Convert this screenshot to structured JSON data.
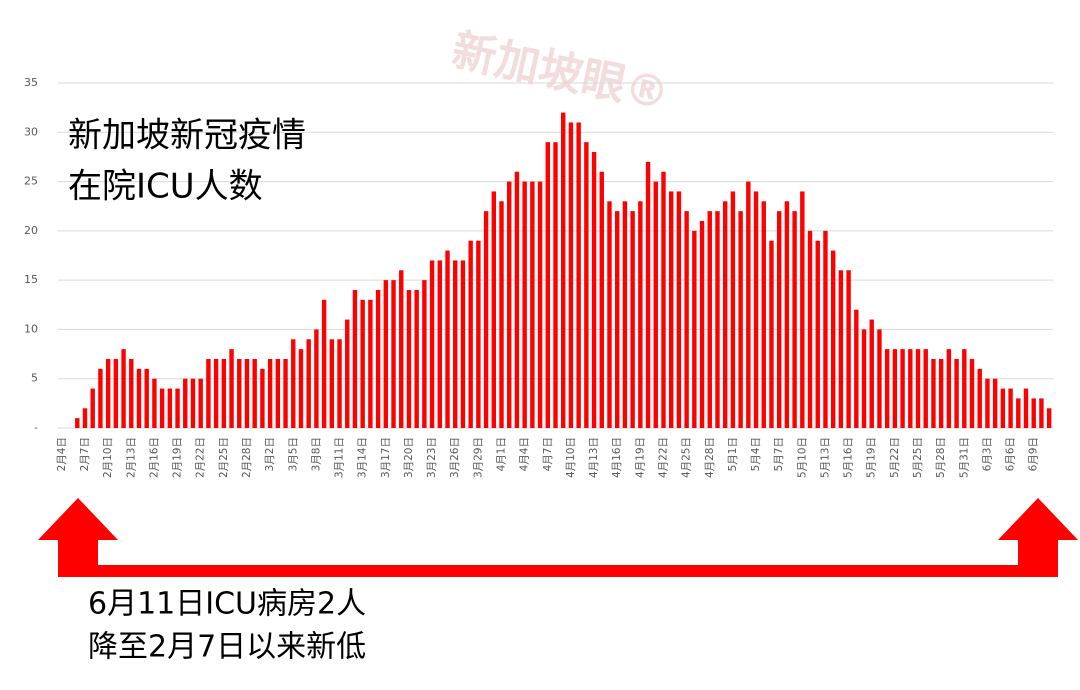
{
  "chart_data": {
    "type": "bar",
    "title_lines": [
      "新加坡新冠疫情",
      "在院ICU人数"
    ],
    "annotation_lines": [
      "6月11日ICU病房2人",
      "降至2月7日以来新低"
    ],
    "watermark": "新加坡眼®",
    "color": "#ff0000",
    "grid": true,
    "ylim": [
      0,
      35
    ],
    "yticks": [
      {
        "value": 0,
        "label": "-"
      },
      5,
      10,
      15,
      20,
      25,
      30,
      35
    ],
    "categories": [
      "2月4日",
      null,
      null,
      "2月7日",
      null,
      null,
      "2月10日",
      null,
      null,
      "2月13日",
      null,
      null,
      "2月16日",
      null,
      null,
      "2月19日",
      null,
      null,
      "2月22日",
      null,
      null,
      "2月25日",
      null,
      null,
      "2月28日",
      null,
      null,
      "3月2日",
      null,
      null,
      "3月5日",
      null,
      null,
      "3月8日",
      null,
      null,
      "3月11日",
      null,
      null,
      "3月14日",
      null,
      null,
      "3月17日",
      null,
      null,
      "3月20日",
      null,
      null,
      "3月23日",
      null,
      null,
      "3月26日",
      null,
      null,
      "3月29日",
      null,
      null,
      "4月1日",
      null,
      null,
      "4月4日",
      null,
      null,
      "4月7日",
      null,
      null,
      "4月10日",
      null,
      null,
      "4月13日",
      null,
      null,
      "4月16日",
      null,
      null,
      "4月19日",
      null,
      null,
      "4月22日",
      null,
      null,
      "4月25日",
      null,
      null,
      "4月28日",
      null,
      null,
      "5月1日",
      null,
      null,
      "5月4日",
      null,
      null,
      "5月7日",
      null,
      null,
      "5月10日",
      null,
      null,
      "5月13日",
      null,
      null,
      "5月16日",
      null,
      null,
      "5月19日",
      null,
      null,
      "5月22日",
      null,
      null,
      "5月25日",
      null,
      null,
      "5月28日",
      null,
      null,
      "5月31日",
      null,
      null,
      "6月3日",
      null,
      null,
      "6月6日",
      null,
      null,
      "6月9日",
      null,
      null
    ],
    "values": [
      0,
      0,
      1,
      2,
      4,
      6,
      7,
      7,
      8,
      7,
      6,
      6,
      5,
      4,
      4,
      4,
      5,
      5,
      5,
      7,
      7,
      7,
      8,
      7,
      7,
      7,
      6,
      7,
      7,
      7,
      9,
      8,
      9,
      10,
      13,
      9,
      9,
      11,
      14,
      13,
      13,
      14,
      15,
      15,
      16,
      14,
      14,
      15,
      17,
      17,
      18,
      17,
      17,
      19,
      19,
      22,
      24,
      23,
      25,
      26,
      25,
      25,
      25,
      29,
      29,
      32,
      31,
      31,
      29,
      28,
      26,
      23,
      22,
      23,
      22,
      23,
      27,
      25,
      26,
      24,
      24,
      22,
      20,
      21,
      22,
      22,
      23,
      24,
      22,
      25,
      24,
      23,
      19,
      22,
      23,
      22,
      24,
      20,
      19,
      20,
      18,
      16,
      16,
      12,
      10,
      11,
      10,
      8,
      8,
      8,
      8,
      8,
      8,
      7,
      7,
      8,
      7,
      8,
      7,
      6,
      5,
      5,
      4,
      4,
      3,
      4,
      3,
      3,
      2
    ]
  }
}
